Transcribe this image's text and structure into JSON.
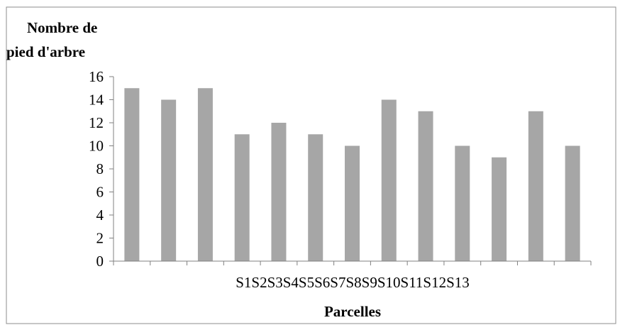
{
  "chart_data": {
    "type": "bar",
    "categories": [
      "S1",
      "S2",
      "S3",
      "S4",
      "S5",
      "S6",
      "S7",
      "S8",
      "S9",
      "S10",
      "S11",
      "S12",
      "S13"
    ],
    "category_label_text": "S1S2S3S4S5S6S7S8S9S10S11S12S13",
    "values": [
      15,
      14,
      15,
      11,
      12,
      11,
      10,
      14,
      13,
      10,
      9,
      13,
      10
    ],
    "ylabel_lines": [
      "Nombre de",
      "pied d'arbre"
    ],
    "xlabel": "Parcelles",
    "ylim": [
      0,
      16
    ],
    "yticks": [
      0,
      2,
      4,
      6,
      8,
      10,
      12,
      14,
      16
    ],
    "ytick_labels": [
      "0",
      "2",
      "4",
      "6",
      "8",
      "10",
      "12",
      "14",
      "16"
    ],
    "grid": false,
    "bar_color": "#a6a6a6",
    "axis_color": "#808080",
    "border_color": "#8c8c8c"
  }
}
